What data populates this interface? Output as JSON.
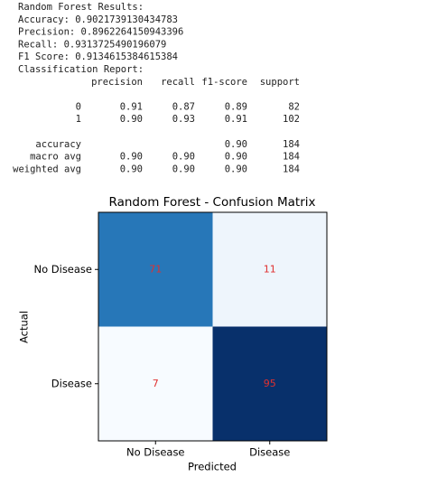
{
  "text_output": {
    "lines": [
      "Random Forest Results:",
      "Accuracy: 0.9021739130434783",
      "Precision: 0.8962264150943396",
      "Recall: 0.9313725490196079",
      "F1 Score: 0.9134615384615384",
      "Classification Report:"
    ],
    "report": {
      "header": [
        "precision",
        "recall",
        "f1-score",
        "support"
      ],
      "rows": [
        [
          "0",
          "0.91",
          "0.87",
          "0.89",
          "82"
        ],
        [
          "1",
          "0.90",
          "0.93",
          "0.91",
          "102"
        ],
        [
          "accuracy",
          null,
          null,
          "0.90",
          "184"
        ],
        [
          "macro avg",
          "0.90",
          "0.90",
          "0.90",
          "184"
        ],
        [
          "weighted avg",
          "0.90",
          "0.90",
          "0.90",
          "184"
        ]
      ]
    }
  },
  "chart_data": {
    "type": "heatmap",
    "title": "Random Forest - Confusion Matrix",
    "xlabel": "Predicted",
    "ylabel": "Actual",
    "x_categories": [
      "No Disease",
      "Disease"
    ],
    "y_categories": [
      "No Disease",
      "Disease"
    ],
    "values": [
      [
        71,
        11
      ],
      [
        7,
        95
      ]
    ],
    "colormap": [
      "#f7fbff",
      "#deebf7",
      "#c6dbef",
      "#9ecae1",
      "#6baed6",
      "#4292c6",
      "#2171b5",
      "#08519c",
      "#08306b"
    ],
    "annotation_color": "#e03030"
  }
}
